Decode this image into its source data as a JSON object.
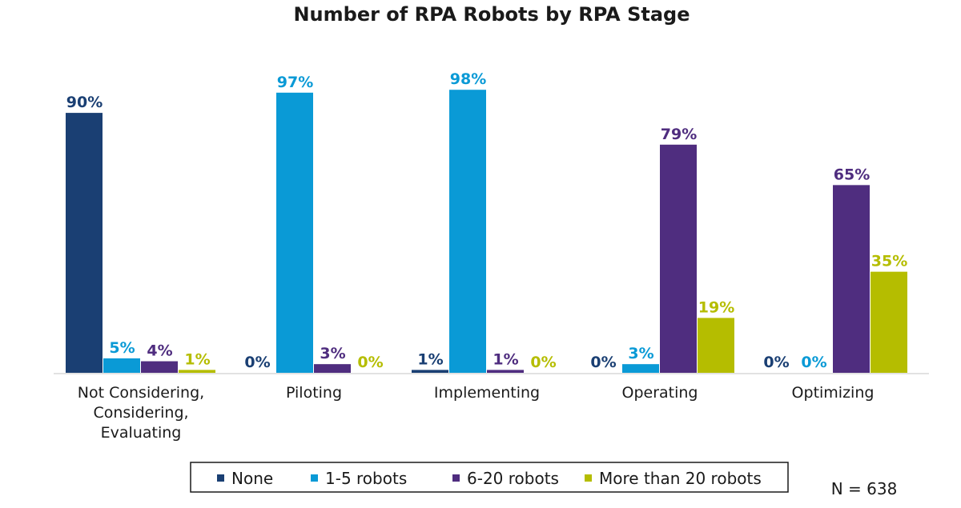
{
  "chart_data": {
    "type": "bar",
    "title": "Number of RPA Robots by RPA Stage",
    "categories": [
      [
        "Not Considering,",
        "Considering,",
        "Evaluating"
      ],
      [
        "Piloting"
      ],
      [
        "Implementing"
      ],
      [
        "Operating"
      ],
      [
        "Optimizing"
      ]
    ],
    "series": [
      {
        "name": "None",
        "color": "#1a3f73",
        "values": [
          90,
          0,
          1,
          0,
          0
        ]
      },
      {
        "name": "1-5 robots",
        "color": "#0a9ad6",
        "values": [
          5,
          97,
          98,
          3,
          0
        ]
      },
      {
        "name": "6-20 robots",
        "color": "#4f2d7f",
        "values": [
          4,
          3,
          1,
          79,
          65
        ]
      },
      {
        "name": "More than 20 robots",
        "color": "#b5bd00",
        "values": [
          1,
          0,
          0,
          19,
          35
        ]
      }
    ],
    "value_suffix": "%",
    "ylim": [
      0,
      100
    ],
    "grid": false,
    "legend_position": "bottom"
  },
  "note": "N = 638"
}
